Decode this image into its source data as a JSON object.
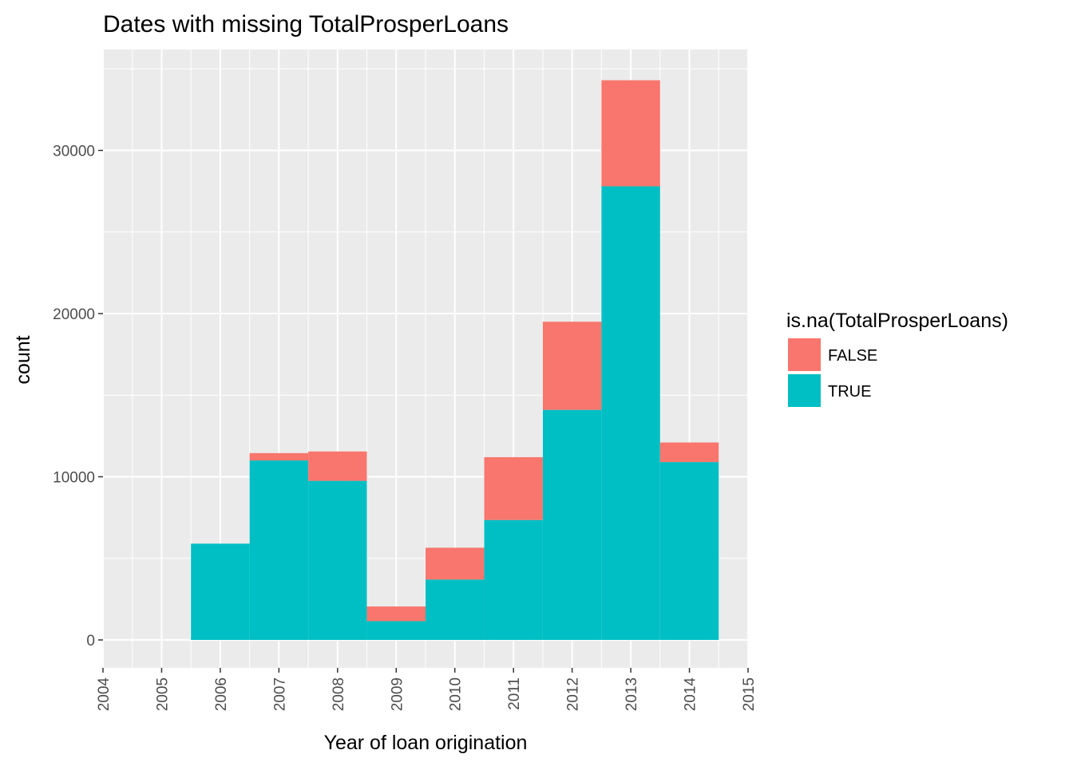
{
  "chart_data": {
    "type": "bar",
    "stacked": true,
    "title": "Dates with missing  TotalProsperLoans",
    "xlabel": "Year of loan origination",
    "ylabel": "count",
    "xlim": [
      2004,
      2015
    ],
    "ylim": [
      0,
      35000
    ],
    "x_ticks": [
      "2004",
      "2005",
      "2006",
      "2007",
      "2008",
      "2009",
      "2010",
      "2011",
      "2012",
      "2013",
      "2014",
      "2015"
    ],
    "y_ticks": [
      0,
      10000,
      20000,
      30000
    ],
    "bins": [
      {
        "x0": 2005.5,
        "x1": 2006.5
      },
      {
        "x0": 2006.5,
        "x1": 2007.5
      },
      {
        "x0": 2007.5,
        "x1": 2008.5
      },
      {
        "x0": 2008.5,
        "x1": 2009.5
      },
      {
        "x0": 2009.5,
        "x1": 2010.5
      },
      {
        "x0": 2010.5,
        "x1": 2011.5
      },
      {
        "x0": 2011.5,
        "x1": 2012.5
      },
      {
        "x0": 2012.5,
        "x1": 2013.5
      },
      {
        "x0": 2013.5,
        "x1": 2014.5
      }
    ],
    "series": [
      {
        "name": "TRUE",
        "color": "#00BFC4",
        "values": [
          5900,
          11000,
          9750,
          1150,
          3700,
          7350,
          14100,
          27800,
          10900
        ]
      },
      {
        "name": "FALSE",
        "color": "#F8766D",
        "values": [
          0,
          450,
          1800,
          900,
          1950,
          3850,
          5400,
          6500,
          1200
        ]
      }
    ],
    "legend": {
      "title": "is.na(TotalProsperLoans)",
      "placement": "right",
      "entries": [
        {
          "label": "FALSE",
          "color": "#F8766D"
        },
        {
          "label": "TRUE",
          "color": "#00BFC4"
        }
      ]
    },
    "grid": true,
    "panel_background": "#EBEBEB"
  }
}
